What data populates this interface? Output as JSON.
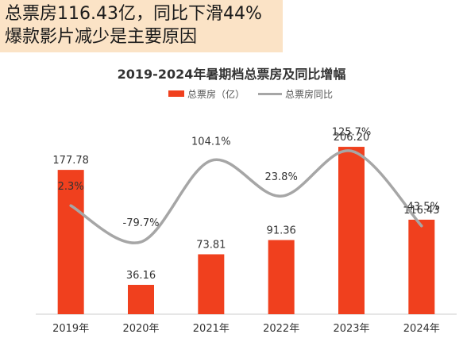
{
  "headline": {
    "line1": "总票房116.43亿，同比下滑44%",
    "line2": "爆款影片减少是主要原因"
  },
  "chart_data": {
    "type": "bar",
    "title": "2019-2024年暑期档总票房及同比增幅",
    "categories": [
      "2019年",
      "2020年",
      "2021年",
      "2022年",
      "2023年",
      "2024年"
    ],
    "series": [
      {
        "name": "总票房（亿）",
        "type": "bar",
        "color": "#f0401e",
        "values": [
          177.78,
          36.16,
          73.81,
          91.36,
          206.2,
          116.43
        ],
        "labels": [
          "177.78",
          "36.16",
          "73.81",
          "91.36",
          "206.20",
          "116.43"
        ]
      },
      {
        "name": "总票房同比",
        "type": "line",
        "color": "#a6a6a6",
        "values": [
          2.3,
          -79.7,
          104.1,
          23.8,
          125.7,
          -43.5
        ],
        "labels": [
          "2.3%",
          "-79.7%",
          "104.1%",
          "23.8%",
          "125.7%",
          "-43.5%"
        ]
      }
    ],
    "bar_ylim": [
      0,
      260
    ],
    "line_ylim": [
      -250,
      180
    ],
    "legend": "top-center",
    "grid": false,
    "xlabel": "",
    "ylabel": ""
  }
}
